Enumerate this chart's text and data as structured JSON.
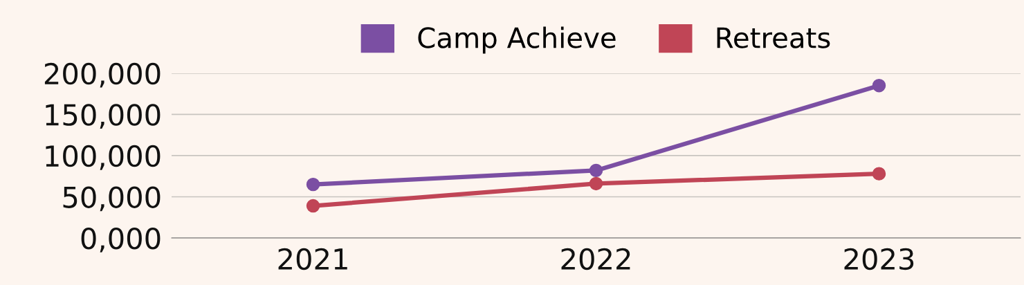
{
  "chart_data": {
    "type": "line",
    "categories": [
      "2021",
      "2022",
      "2023"
    ],
    "series": [
      {
        "name": "Camp Achieve",
        "color": "#7b4fa3",
        "values": [
          65000,
          82000,
          185000
        ]
      },
      {
        "name": "Retreats",
        "color": "#c04556",
        "values": [
          39000,
          66000,
          78000
        ]
      }
    ],
    "ylim": [
      0,
      200000
    ],
    "yticks": [
      {
        "value": 0,
        "label": "0,000"
      },
      {
        "value": 50000,
        "label": "50,000"
      },
      {
        "value": 100000,
        "label": "100,000"
      },
      {
        "value": 150000,
        "label": "150,000"
      },
      {
        "value": 200000,
        "label": "200,000"
      }
    ],
    "grid": "y",
    "legend": "top",
    "marker": "circle",
    "line_style": "solid"
  }
}
